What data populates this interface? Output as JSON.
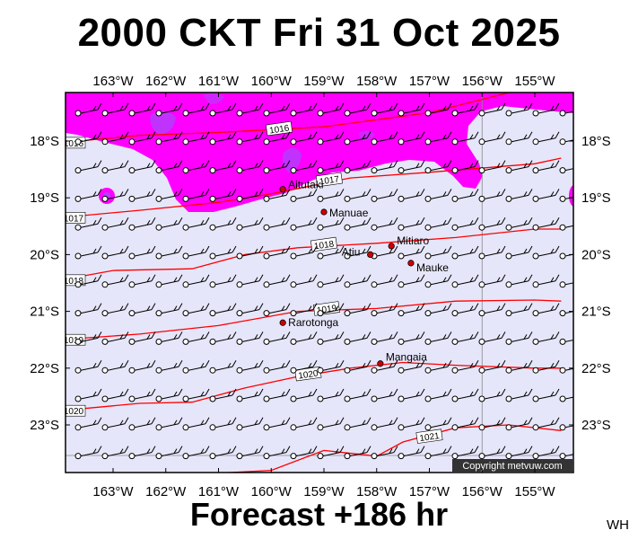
{
  "header": {
    "title": "2000 CKT Fri 31 Oct 2025"
  },
  "footer": {
    "forecast": "Forecast +186 hr",
    "initials": "WH"
  },
  "map": {
    "lon_labels": [
      "163°W",
      "162°W",
      "161°W",
      "160°W",
      "159°W",
      "158°W",
      "157°W",
      "156°W",
      "155°W"
    ],
    "lon_values": [
      -163,
      -162,
      -161,
      -160,
      -159,
      -158,
      -157,
      -156,
      -155
    ],
    "lat_labels": [
      "18°S",
      "19°S",
      "20°S",
      "21°S",
      "22°S",
      "23°S"
    ],
    "lat_values": [
      -18,
      -19,
      -20,
      -21,
      -22,
      -23
    ],
    "places": [
      {
        "name": "Aitutaki",
        "lon": -159.78,
        "lat": -18.85,
        "label_dx": 6,
        "label_dy": -1
      },
      {
        "name": "Manuae",
        "lon": -159.0,
        "lat": -19.25,
        "label_dx": 6,
        "label_dy": 5
      },
      {
        "name": "Mitiaro",
        "lon": -157.72,
        "lat": -19.85,
        "label_dx": 6,
        "label_dy": -2
      },
      {
        "name": "Atiu",
        "lon": -158.12,
        "lat": -20.0,
        "label_dx": -32,
        "label_dy": 1
      },
      {
        "name": "Mauke",
        "lon": -157.35,
        "lat": -20.15,
        "label_dx": 6,
        "label_dy": 9
      },
      {
        "name": "Rarotonga",
        "lon": -159.78,
        "lat": -21.2,
        "label_dx": 6,
        "label_dy": 4
      },
      {
        "name": "Mangaia",
        "lon": -157.93,
        "lat": -21.92,
        "label_dx": 6,
        "label_dy": -3
      }
    ],
    "isobars": [
      {
        "label": "1016",
        "points": [
          [
            -164,
            -18.03
          ],
          [
            -162.5,
            -17.9
          ],
          [
            -161,
            -17.85
          ],
          [
            -159,
            -17.75
          ],
          [
            -157,
            -17.5
          ],
          [
            -155.5,
            -17.15
          ],
          [
            -154.5,
            -17.0
          ]
        ],
        "label_at": [
          -159.85,
          -17.78
        ]
      },
      {
        "label": "1017",
        "points": [
          [
            -164,
            -19.35
          ],
          [
            -162.5,
            -19.22
          ],
          [
            -161,
            -19.08
          ],
          [
            -160,
            -18.93
          ],
          [
            -158.5,
            -18.65
          ],
          [
            -157,
            -18.55
          ],
          [
            -155,
            -18.4
          ],
          [
            -154.5,
            -18.3
          ]
        ],
        "label_at": [
          -158.9,
          -18.68
        ]
      },
      {
        "label": "1018",
        "points": [
          [
            -164,
            -20.45
          ],
          [
            -163,
            -20.28
          ],
          [
            -161.5,
            -20.25
          ],
          [
            -160.5,
            -20.0
          ],
          [
            -159.5,
            -19.88
          ],
          [
            -158,
            -19.8
          ],
          [
            -156.5,
            -19.7
          ],
          [
            -155,
            -19.55
          ],
          [
            -154.5,
            -19.55
          ]
        ],
        "label_at": [
          -159.0,
          -19.82
        ]
      },
      {
        "label": "1019",
        "points": [
          [
            -164,
            -21.5
          ],
          [
            -162.5,
            -21.4
          ],
          [
            -161,
            -21.25
          ],
          [
            -159.5,
            -21.0
          ],
          [
            -158,
            -20.95
          ],
          [
            -156.5,
            -20.82
          ],
          [
            -155,
            -20.8
          ],
          [
            -154.5,
            -20.82
          ]
        ],
        "label_at": [
          -158.95,
          -20.95
        ]
      },
      {
        "label": "1020",
        "points": [
          [
            -164,
            -22.75
          ],
          [
            -162.5,
            -22.62
          ],
          [
            -161.5,
            -22.6
          ],
          [
            -160.5,
            -22.35
          ],
          [
            -159.5,
            -22.15
          ],
          [
            -158.5,
            -22.0
          ],
          [
            -157.5,
            -21.9
          ],
          [
            -156.5,
            -21.95
          ],
          [
            -155,
            -22.0
          ],
          [
            -154.5,
            -22.0
          ]
        ],
        "label_at": [
          -159.3,
          -22.1
        ]
      },
      {
        "label": "1021",
        "points": [
          [
            -162.2,
            -24.0
          ],
          [
            -161,
            -23.85
          ],
          [
            -160,
            -23.8
          ],
          [
            -159,
            -23.45
          ],
          [
            -158,
            -23.55
          ],
          [
            -157.5,
            -23.3
          ],
          [
            -156.5,
            -23.05
          ],
          [
            -155.5,
            -23.0
          ],
          [
            -154.5,
            -23.1
          ]
        ],
        "label_at": [
          -157.0,
          -23.2
        ]
      }
    ],
    "copyright": "Copyright metvuw.com",
    "colors": {
      "background": "#e6e6fa",
      "rain_light": "#ff00ff",
      "rain_heavy": "#b040ff",
      "isobar": "#ff0000",
      "land": "#d00000"
    }
  }
}
